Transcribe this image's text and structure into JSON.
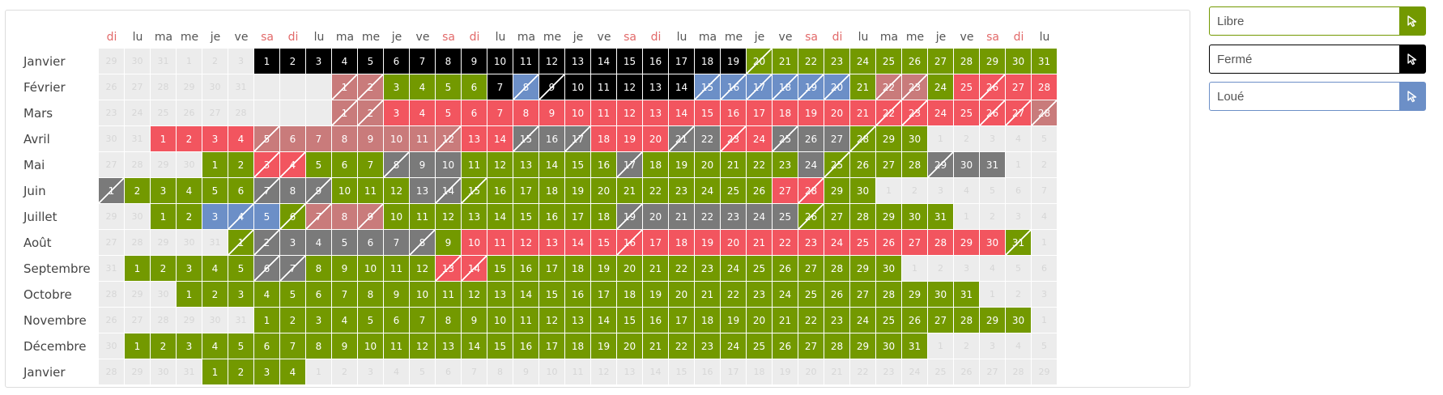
{
  "weekday_headers": [
    "di",
    "lu",
    "ma",
    "me",
    "je",
    "ve",
    "sa",
    "di",
    "lu",
    "ma",
    "me",
    "je",
    "ve",
    "sa",
    "di",
    "lu",
    "ma",
    "me",
    "je",
    "ve",
    "sa",
    "di",
    "lu",
    "ma",
    "me",
    "je",
    "ve",
    "sa",
    "di",
    "lu",
    "ma",
    "me",
    "je",
    "ve",
    "sa",
    "di",
    "lu"
  ],
  "weekend_indices": [
    0,
    6,
    7,
    13,
    14,
    20,
    21,
    27,
    28,
    34,
    35
  ],
  "months": [
    {
      "name": "Janvier",
      "offset": 6,
      "days": 31,
      "before": [
        "29",
        "30",
        "31",
        "1",
        "2",
        "3"
      ]
    },
    {
      "name": "Février",
      "offset": 9,
      "days": 28,
      "before": [
        "26",
        "27",
        "28",
        "29",
        "30",
        "31"
      ]
    },
    {
      "name": "Mars",
      "offset": 9,
      "days": 31,
      "before": [
        "23",
        "24",
        "25",
        "26",
        "27",
        "28"
      ]
    },
    {
      "name": "Avril",
      "offset": 2,
      "days": 30,
      "before": [
        "30",
        "31"
      ]
    },
    {
      "name": "Mai",
      "offset": 4,
      "days": 31,
      "before": [
        "27",
        "28",
        "29",
        "30"
      ]
    },
    {
      "name": "Juin",
      "offset": 0,
      "days": 30,
      "before": []
    },
    {
      "name": "Juillet",
      "offset": 2,
      "days": 31,
      "before": [
        "29",
        "30"
      ]
    },
    {
      "name": "Août",
      "offset": 5,
      "days": 31,
      "before": [
        "27",
        "28",
        "29",
        "30",
        "31"
      ]
    },
    {
      "name": "Septembre",
      "offset": 1,
      "days": 30,
      "before": [
        "31"
      ]
    },
    {
      "name": "Octobre",
      "offset": 3,
      "days": 31,
      "before": [
        "28",
        "29",
        "30"
      ]
    },
    {
      "name": "Novembre",
      "offset": 6,
      "days": 30,
      "before": [
        "26",
        "27",
        "28",
        "29",
        "30",
        "31"
      ]
    },
    {
      "name": "Décembre",
      "offset": 1,
      "days": 31,
      "before": [
        "30"
      ]
    },
    {
      "name": "Janvier",
      "offset": 4,
      "days": 4,
      "before": [
        "28",
        "29",
        "30",
        "31"
      ]
    }
  ],
  "status_runs": [
    [
      "f1-19",
      "l20-31"
    ],
    [
      "l1-6",
      "f7-14",
      "l15-28"
    ],
    [
      "r1-31"
    ],
    [
      "r1-30"
    ],
    [
      "l1-31"
    ],
    [
      "l1-30"
    ],
    [
      "l1-31"
    ],
    [
      "l1-9",
      "r10-30",
      "l31"
    ],
    [
      "l1-30"
    ],
    [
      "l1-31"
    ],
    [
      "l1-30"
    ],
    [
      "l1-31"
    ],
    [
      "l1-4"
    ]
  ],
  "status_overrides": {
    "1": {
      "1": "pk",
      "2": "pk",
      "8": "bl",
      "15": "bl",
      "16": "bl",
      "17": "bl",
      "18": "bl",
      "19": "bl",
      "20": "bl",
      "22": "pk",
      "23": "pk",
      "25": "r",
      "26": "r",
      "27": "r",
      "28": "r"
    },
    "2": {
      "1": "pk",
      "2": "pk",
      "28": "pk",
      "29": "pk",
      "30": "pk"
    },
    "3": {
      "5": "pk",
      "6": "pk",
      "7": "pk",
      "8": "pk",
      "9": "pk",
      "10": "pk",
      "11": "pk",
      "12": "pk",
      "15": "gy",
      "16": "gy",
      "17": "gy",
      "21": "gy",
      "22": "gy",
      "23": "r",
      "24": "r",
      "25": "gy",
      "26": "gy",
      "27": "gy",
      "28": "l",
      "29": "l",
      "30": "l"
    },
    "4": {
      "3": "r",
      "4": "r",
      "8": "gy",
      "9": "gy",
      "10": "gy",
      "17": "gy",
      "24": "gy",
      "29": "gy",
      "30": "gy",
      "31": "gy"
    },
    "5": {
      "1": "gy",
      "7": "gy",
      "8": "gy",
      "9": "gy",
      "13": "gy",
      "14": "gy",
      "27": "r",
      "28": "r"
    },
    "6": {
      "3": "bl",
      "4": "bl",
      "5": "bl",
      "7": "pk",
      "8": "pk",
      "9": "pk",
      "19": "gy",
      "20": "gy",
      "21": "gy",
      "22": "gy",
      "23": "gy",
      "24": "gy",
      "25": "gy",
      "26": "l"
    },
    "7": {
      "2": "gy",
      "3": "gy",
      "4": "gy",
      "5": "gy",
      "6": "gy",
      "7": "gy",
      "8": "gy",
      "9": "l"
    },
    "8": {
      "6": "gy",
      "7": "gy",
      "13": "r",
      "14": "r"
    }
  },
  "split_days": {
    "0": [
      20
    ],
    "1": [
      1,
      2,
      8,
      9,
      15,
      16,
      17,
      18,
      19,
      20,
      22,
      23,
      26
    ],
    "2": [
      1,
      2,
      22,
      23,
      26,
      27,
      28,
      29,
      30
    ],
    "3": [
      5,
      12,
      15,
      17,
      21,
      23,
      25,
      28
    ],
    "4": [
      3,
      4,
      8,
      17,
      25,
      29
    ],
    "5": [
      1,
      7,
      9,
      14,
      15,
      28
    ],
    "6": [
      4,
      6,
      7,
      9,
      19,
      26
    ],
    "7": [
      1,
      2,
      8,
      16,
      31
    ],
    "8": [
      6,
      7,
      13,
      14
    ]
  },
  "legend": [
    {
      "label": "Libre",
      "color": "#739900",
      "icon": "cursor-icon"
    },
    {
      "label": "Fermé",
      "color": "#000000",
      "icon": "cursor-icon"
    },
    {
      "label": "Loué",
      "color": "#6c8fc7",
      "icon": "cursor-icon"
    }
  ]
}
